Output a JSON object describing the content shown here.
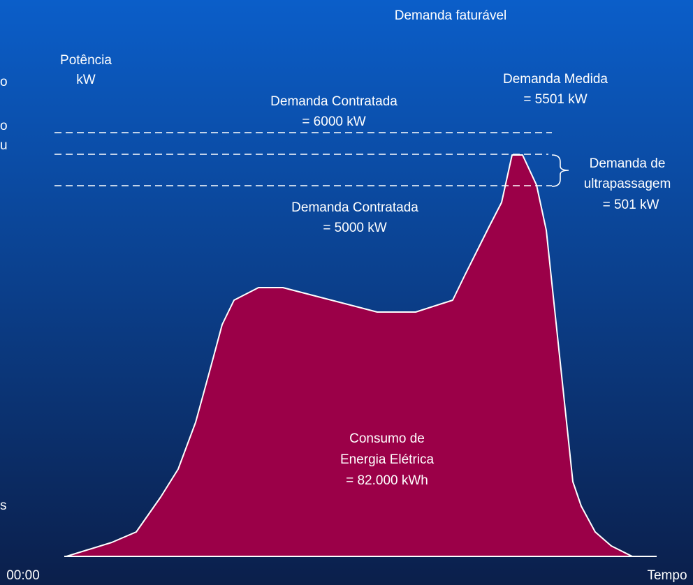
{
  "title": "Demanda faturável",
  "y_axis_label": [
    "Potência",
    "kW"
  ],
  "x_axis_start": "00:00",
  "x_axis_label": "Tempo",
  "annotations": {
    "contracted_high": [
      "Demanda Contratada",
      "= 6000 kW"
    ],
    "measured": [
      "Demanda Medida",
      "= 5501 kW"
    ],
    "overrun": [
      "Demanda de",
      "ultrapassagem",
      "= 501 kW"
    ],
    "contracted_low": [
      "Demanda Contratada",
      "= 5000 kW"
    ],
    "consumption": [
      "Consumo de",
      "Energia Elétrica",
      "= 82.000 kWh"
    ]
  },
  "edge_fragments": [
    "o",
    "o",
    "u",
    "s"
  ]
}
